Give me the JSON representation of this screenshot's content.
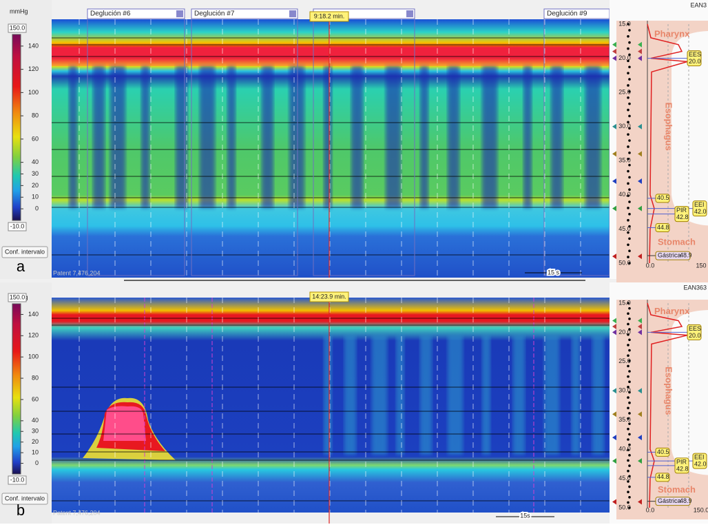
{
  "panels": [
    {
      "letter": "a",
      "unit": "mmHg",
      "scale_max": "150.0",
      "scale_min": "-10.0",
      "scale_ticks": [
        "140",
        "120",
        "100",
        "80",
        "60",
        "40",
        "30",
        "20",
        "10",
        "0"
      ],
      "button": "Conf. intervalo",
      "time_marker": "9:18.2 min.",
      "swallows": [
        "Deglución #6",
        "Deglución #7",
        "Deglución #9"
      ],
      "scale_bar": "15 s",
      "patent": "Patent 7,476,204",
      "channel": "EAN3",
      "depths": [
        "15.0",
        "20.0",
        "25.0",
        "30.0",
        "35.0",
        "40.0",
        "45.0",
        "50.0"
      ],
      "regions": [
        "Pharynx",
        "Esophagus",
        "Stomach"
      ],
      "markers": [
        {
          "label": "EES",
          "value": "20.0"
        },
        {
          "label": "",
          "value": "40.5"
        },
        {
          "label": "EEI",
          "value": "42.0"
        },
        {
          "label": "PIR",
          "value": "42.8"
        },
        {
          "label": "",
          "value": "44.8"
        },
        {
          "label": "Gástrica",
          "value": "48.9"
        }
      ],
      "x_axis": [
        "0.0",
        "150"
      ]
    },
    {
      "letter": "b",
      "unit": "mmHg",
      "scale_max": "150.0",
      "scale_min": "-10.0",
      "scale_ticks": [
        "140",
        "120",
        "100",
        "80",
        "60",
        "40",
        "30",
        "20",
        "10",
        "0"
      ],
      "button": "Conf. intervalo",
      "time_marker": "14:23.9 min.",
      "swallows": [],
      "scale_bar": "15s",
      "patent": "Patent 7,476,204",
      "channel": "EAN363",
      "depths": [
        "15.0",
        "20.0",
        "25.0",
        "30.0",
        "35.0",
        "40.0",
        "45.0",
        "50.0"
      ],
      "regions": [
        "Pharynx",
        "Esophagus",
        "Stomach"
      ],
      "markers": [
        {
          "label": "EES",
          "value": "20.0"
        },
        {
          "label": "",
          "value": "40.5"
        },
        {
          "label": "EEI",
          "value": "42.0"
        },
        {
          "label": "PIR",
          "value": "42.8"
        },
        {
          "label": "",
          "value": "44.8"
        },
        {
          "label": "Gástrica",
          "value": "48.9"
        }
      ],
      "x_axis": [
        "0.0",
        "150.0"
      ]
    }
  ]
}
